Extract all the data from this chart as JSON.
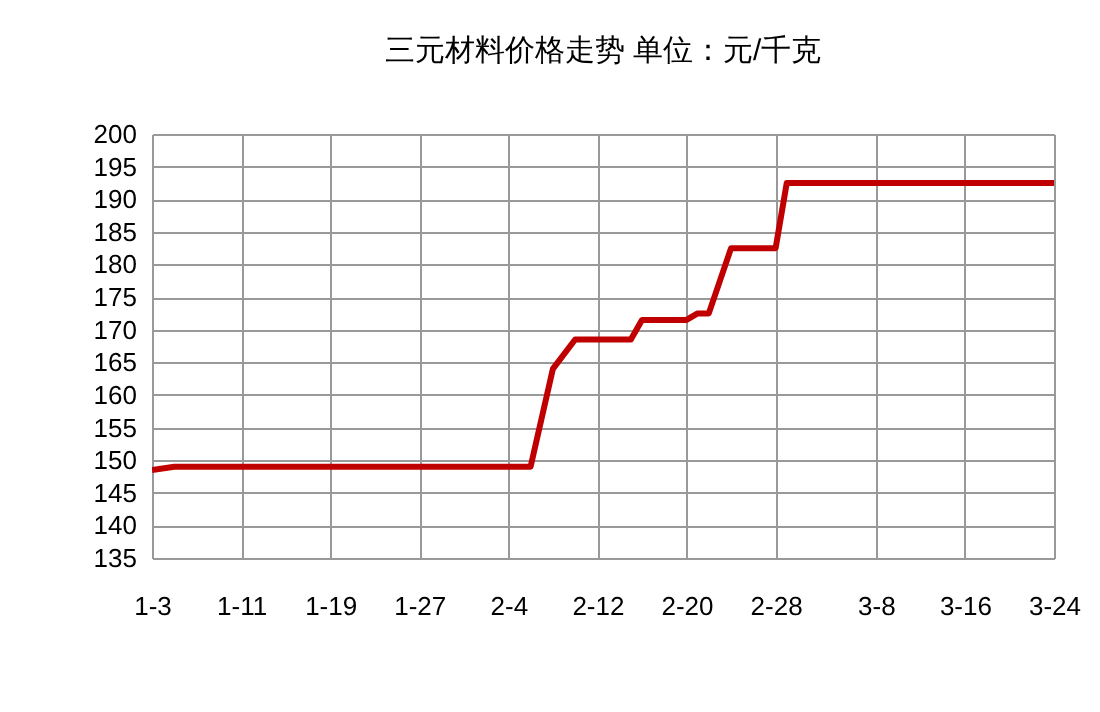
{
  "chart_data": {
    "type": "line",
    "title": "三元材料价格走势 单位：元/千克",
    "x": [
      "--01-03",
      "--01-05",
      "--01-11",
      "--02-06",
      "--02-08",
      "--02-10",
      "--02-15",
      "--02-16",
      "--02-20",
      "--02-21",
      "--02-22",
      "--02-24",
      "--02-28",
      "--02-29",
      "--03-24"
    ],
    "series": [
      {
        "color": "#c00000",
        "values": [
          148.5,
          149,
          149,
          149,
          164,
          168.5,
          168.5,
          171.5,
          171.5,
          172.5,
          172.5,
          182.5,
          182.5,
          192.5,
          192.5
        ]
      }
    ],
    "xlim": [
      "--01-03",
      "--03-24"
    ],
    "xticks": [
      {
        "value": "--01-03",
        "label": "1-3"
      },
      {
        "value": "--01-11",
        "label": "1-11"
      },
      {
        "value": "--01-19",
        "label": "1-19"
      },
      {
        "value": "--01-27",
        "label": "1-27"
      },
      {
        "value": "--02-04",
        "label": "2-4"
      },
      {
        "value": "--02-12",
        "label": "2-12"
      },
      {
        "value": "--02-20",
        "label": "2-20"
      },
      {
        "value": "--02-28",
        "label": "2-28"
      },
      {
        "value": "--03-08",
        "label": "3-8"
      },
      {
        "value": "--03-16",
        "label": "3-16"
      },
      {
        "value": "--03-24",
        "label": "3-24"
      }
    ],
    "ylim": [
      135,
      200
    ],
    "yticks": [
      135,
      140,
      145,
      150,
      155,
      160,
      165,
      170,
      175,
      180,
      185,
      190,
      195,
      200
    ],
    "grid": true,
    "marker": "none",
    "line_style": "solid"
  }
}
